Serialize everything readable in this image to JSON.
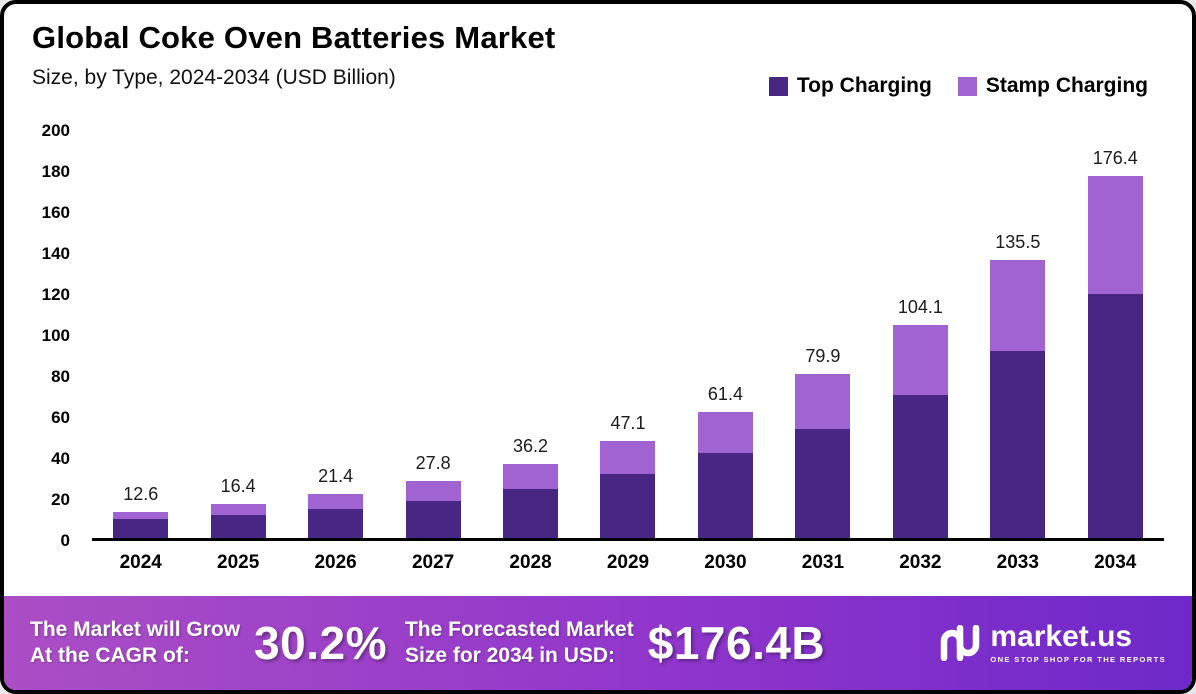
{
  "chart": {
    "title": "Global Coke Oven Batteries Market",
    "subtitle": "Size, by Type, 2024-2034 (USD Billion)",
    "legend": [
      {
        "label": "Top Charging",
        "color": "#482683"
      },
      {
        "label": "Stamp Charging",
        "color": "#a263d2"
      }
    ]
  },
  "chart_data": {
    "type": "bar",
    "stacked": true,
    "title": "Global Coke Oven Batteries Market",
    "subtitle": "Size, by Type, 2024-2034 (USD Billion)",
    "categories": [
      "2024",
      "2025",
      "2026",
      "2027",
      "2028",
      "2029",
      "2030",
      "2031",
      "2032",
      "2033",
      "2034"
    ],
    "series": [
      {
        "name": "Top Charging",
        "color": "#482683",
        "values": [
          9.3,
          11.2,
          14.1,
          18.0,
          23.9,
          31.2,
          41.4,
          53.3,
          70.0,
          91.0,
          119.0
        ]
      },
      {
        "name": "Stamp Charging",
        "color": "#a263d2",
        "values": [
          3.3,
          5.2,
          7.3,
          9.8,
          12.3,
          15.9,
          20.0,
          26.6,
          34.1,
          44.5,
          57.4
        ]
      }
    ],
    "totals": [
      12.6,
      16.4,
      21.4,
      27.8,
      36.2,
      47.1,
      61.4,
      79.9,
      104.1,
      135.5,
      176.4
    ],
    "total_labels": [
      "12.6",
      "16.4",
      "21.4",
      "27.8",
      "36.2",
      "47.1",
      "61.4",
      "79.9",
      "104.1",
      "135.5",
      "176.4"
    ],
    "ylabel": "",
    "xlabel": "",
    "ylim": [
      0,
      200
    ],
    "ytick_step": 20,
    "grid": false,
    "legend_position": "top-right"
  },
  "footer": {
    "cagr_label_line1": "The Market will Grow",
    "cagr_label_line2": "At the CAGR of:",
    "cagr_value": "30.2%",
    "forecast_label_line1": "The Forecasted Market",
    "forecast_label_line2": "Size for 2034 in USD:",
    "forecast_value": "$176.4B",
    "brand_name": "market.us",
    "brand_tagline": "ONE STOP SHOP FOR THE REPORTS"
  }
}
